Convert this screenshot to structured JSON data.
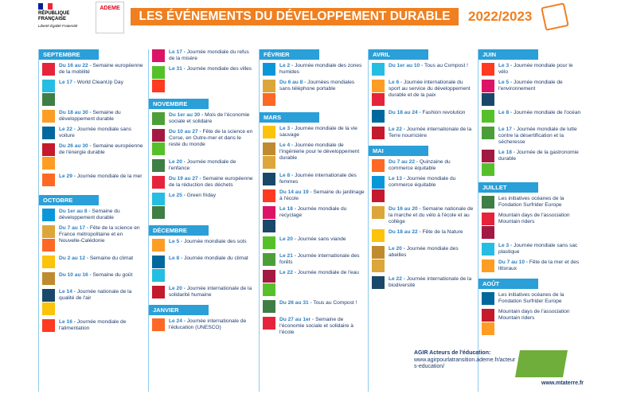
{
  "header": {
    "republique": "RÉPUBLIQUE FRANÇAISE",
    "devise": "Liberté Égalité Fraternité",
    "ademe": "ADEME",
    "title": "LES ÉVÉNEMENTS DU DÉVELOPPEMENT DURABLE",
    "year": "2022/2023"
  },
  "columns": [
    [
      {
        "month": "SEPTEMBRE",
        "events": [
          {
            "date": "Du 16 au 22 -",
            "text": "Semaine européenne de la mobilité"
          },
          {
            "date": "Le 17 -",
            "text": "World CleanUp Day"
          },
          {
            "date": "Du 18 au 30 -",
            "text": "Semaine du développement durable"
          },
          {
            "date": "Le 22 -",
            "text": "Journée mondiale sans voiture"
          },
          {
            "date": "Du 26 au 30 -",
            "text": "Semaine européenne de l'énergie durable"
          },
          {
            "date": "Le 29 -",
            "text": "Journée mondiale de la mer"
          }
        ]
      },
      {
        "month": "OCTOBRE",
        "events": [
          {
            "date": "Du 1er au 8 -",
            "text": "Semaine du développement durable"
          },
          {
            "date": "Du 7 au 17 -",
            "text": "Fête de la science en France métropolitaine et en Nouvelle-Calédonie"
          },
          {
            "date": "Du 2 au 12 -",
            "text": "Semaine du climat"
          },
          {
            "date": "Du 10 au 16 -",
            "text": "Semaine du goût"
          },
          {
            "date": "Le 14 -",
            "text": "Journée nationale de la qualité de l'air"
          },
          {
            "date": "Le 16 -",
            "text": "Journée mondiale de l'alimentation"
          }
        ]
      }
    ],
    [
      {
        "events": [
          {
            "date": "Le 17 -",
            "text": "Journée mondiale du refus de la misère"
          },
          {
            "date": "Le 31 -",
            "text": "Journée mondiale des villes"
          }
        ]
      },
      {
        "month": "NOVEMBRE",
        "events": [
          {
            "date": "Du 1er au 30 -",
            "text": "Mois de l'économie sociale et solidaire"
          },
          {
            "date": "Du 10 au 27 -",
            "text": "Fête de la science en Corse, en Outre-mer et dans le reste du monde"
          },
          {
            "date": "Le 20 -",
            "text": "Journée mondiale de l'enfance"
          },
          {
            "date": "Du 19 au 27 -",
            "text": "Semaine européenne de la réduction des déchets"
          },
          {
            "date": "Le 25 -",
            "text": "Green friday"
          }
        ]
      },
      {
        "month": "DÉCEMBRE",
        "events": [
          {
            "date": "Le 5 -",
            "text": "Journée mondiale des sols"
          },
          {
            "date": "Le 8 -",
            "text": "Journée mondiale du climat"
          },
          {
            "date": "Le 20 -",
            "text": "Journée internationale de la solidarité humaine"
          }
        ]
      },
      {
        "month": "JANVIER",
        "events": [
          {
            "date": "Le 24 -",
            "text": "Journée internationale de l'éducation (UNESCO)"
          }
        ]
      }
    ],
    [
      {
        "month": "FÉVRIER",
        "events": [
          {
            "date": "Le 2 -",
            "text": "Journée mondiale des zones humides"
          },
          {
            "date": "Du 6 au 8 -",
            "text": "Journées mondiales sans téléphone portable"
          }
        ]
      },
      {
        "month": "MARS",
        "events": [
          {
            "date": "Le 3 -",
            "text": "Journée mondiale de la vie sauvage"
          },
          {
            "date": "Le 4 -",
            "text": "Journée mondiale de l'ingénierie pour le développement durable"
          },
          {
            "date": "Le 8 -",
            "text": "Journée internationale des femmes"
          },
          {
            "date": "Du 14 au 19 -",
            "text": "Semaine du jardinage à l'école"
          },
          {
            "date": "Le 18 -",
            "text": "Journée mondiale du recyclage"
          },
          {
            "date": "Le 20 -",
            "text": "Journée sans viande"
          },
          {
            "date": "Le 21 -",
            "text": "Journée internationale des forêts"
          },
          {
            "date": "Le 22 -",
            "text": "Journée mondiale de l'eau"
          },
          {
            "date": "Du 26 au 31 -",
            "text": "Tous au Compost !"
          },
          {
            "date": "Du 27 au 1er -",
            "text": "Semaine de l'économie sociale et solidaire à l'école"
          }
        ]
      }
    ],
    [
      {
        "month": "AVRIL",
        "events": [
          {
            "date": "Du 1er au 10 -",
            "text": "Tous au Compost !"
          },
          {
            "date": "Le 6 -",
            "text": "Journée internationale du sport au service du développement durable et de la paix"
          },
          {
            "date": "Du 18 au 24 -",
            "text": "Fashion revolution"
          },
          {
            "date": "Le 22 -",
            "text": "Journée internationale de la Terre nourricière"
          }
        ]
      },
      {
        "month": "MAI",
        "events": [
          {
            "date": "Du 7 au 22 -",
            "text": "Quinzaine du commerce équitable"
          },
          {
            "date": "Le 13 -",
            "text": "Journée mondiale du commerce équitable"
          },
          {
            "date": "Du 16 au 20 -",
            "text": "Semaine nationale de la marche et du vélo à l'école et au collège"
          },
          {
            "date": "Du 18 au 22 -",
            "text": "Fête de la Nature"
          },
          {
            "date": "Le 20 -",
            "text": "Journée mondiale des abeilles"
          },
          {
            "date": "Le 22 -",
            "text": "Journée internationale de la biodiversité"
          }
        ]
      }
    ],
    [
      {
        "month": "JUIN",
        "events": [
          {
            "date": "Le 3 -",
            "text": "Journée mondiale pour le vélo"
          },
          {
            "date": "Le 5 -",
            "text": "Journée mondiale de l'environnement"
          },
          {
            "date": "Le 8 -",
            "text": "Journée mondiale de l'océan"
          },
          {
            "date": "Le 17 -",
            "text": "Journée mondiale de lutte contre la désertification et la sécheresse"
          },
          {
            "date": "Le 18 -",
            "text": "Journée de la gastronomie durable"
          }
        ]
      },
      {
        "month": "JUILLET",
        "events": [
          {
            "text": "Les initiatives océanes de la Fondation Surfrider Europe"
          },
          {
            "text": "Mountain days de l'association Mountain riders"
          },
          {
            "date": "Le 3 -",
            "text": "Journée mondiale sans sac plastique"
          },
          {
            "date": "Du 7 au 10 -",
            "text": "Fête de la mer et des littoraux"
          }
        ]
      },
      {
        "month": "AOÛT",
        "events": [
          {
            "text": "Les initiatives océanes de la Fondation Surfrider Europe"
          },
          {
            "text": "Mountain days de l'association Mountain riders"
          }
        ]
      }
    ]
  ],
  "footer": {
    "agir": "AGIR Acteurs de l'éducation:",
    "agir_url": "www.agirpourlatransition.ademe.fr/acteurs-education/",
    "mtaterre": "www.mtaterre.fr"
  }
}
